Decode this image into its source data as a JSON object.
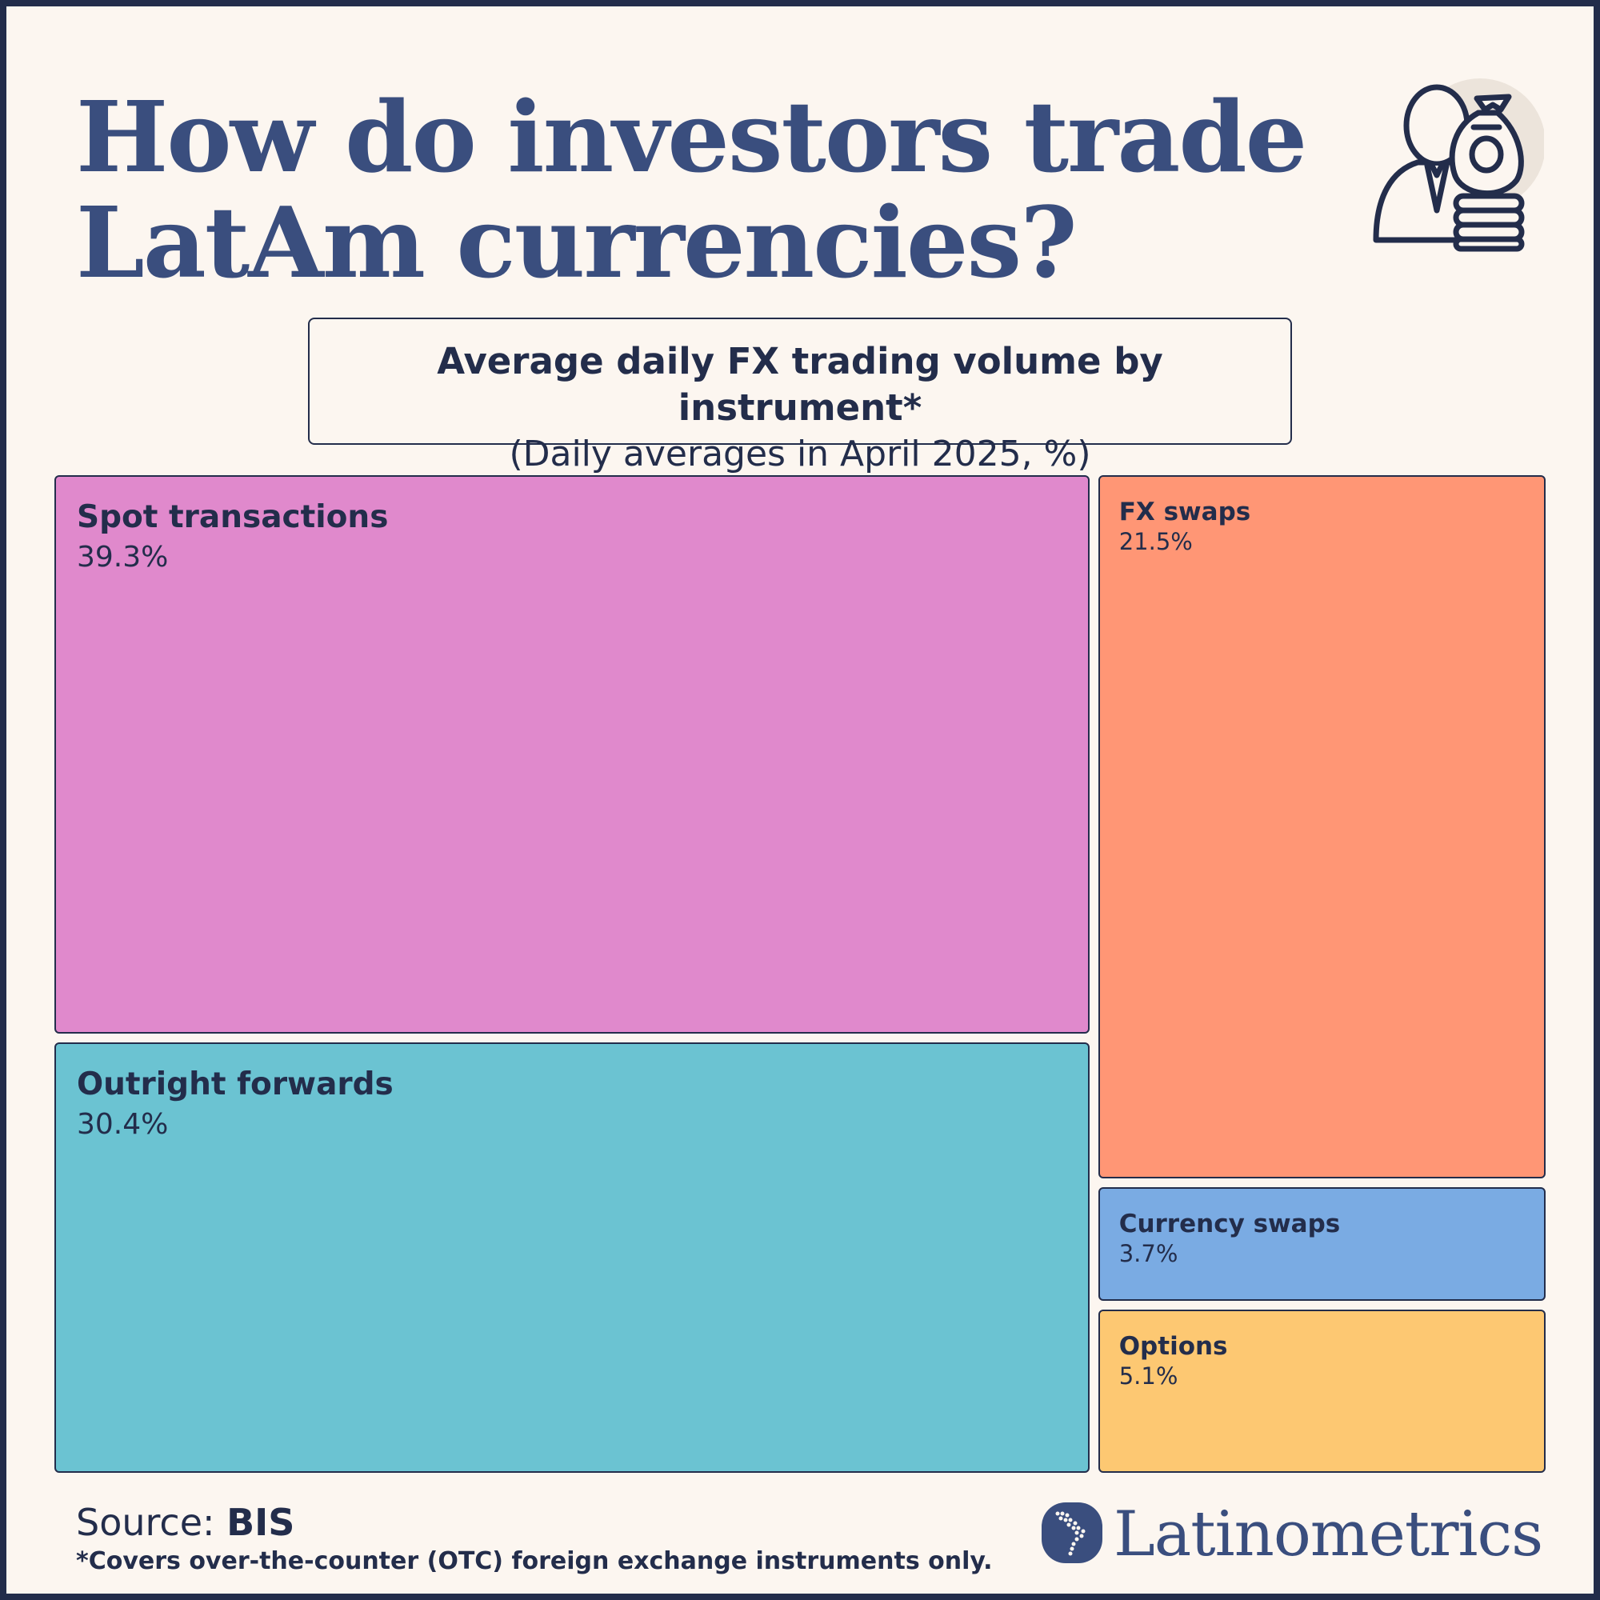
{
  "title_lines": [
    "How do investors trade",
    "LatAm currencies?"
  ],
  "subtitle": "Average daily FX trading volume by instrument*",
  "subtitle_note": "(Daily averages in April 2025, %)",
  "source_label": "Source:",
  "source_name": "BIS",
  "footnote": "*Covers over-the-counter (OTC) foreign exchange instruments only.",
  "brand": "Latinometrics",
  "icons": {
    "hero": "investor-money-bag-icon",
    "brand": "latam-map-logo-icon"
  },
  "chart_data": {
    "type": "treemap",
    "title": "Average daily FX trading volume by instrument*",
    "subtitle": "(Daily averages in April 2025, %)",
    "unit": "%",
    "items": [
      {
        "name": "Spot transactions",
        "value": 39.3,
        "label": "39.3%",
        "color": "#e089cc"
      },
      {
        "name": "Outright forwards",
        "value": 30.4,
        "label": "30.4%",
        "color": "#6bc3d2"
      },
      {
        "name": "FX swaps",
        "value": 21.5,
        "label": "21.5%",
        "color": "#ff9675"
      },
      {
        "name": "Currency swaps",
        "value": 3.7,
        "label": "3.7%",
        "color": "#7aabe3"
      },
      {
        "name": "Options",
        "value": 5.1,
        "label": "5.1%",
        "color": "#fdc872"
      }
    ]
  }
}
